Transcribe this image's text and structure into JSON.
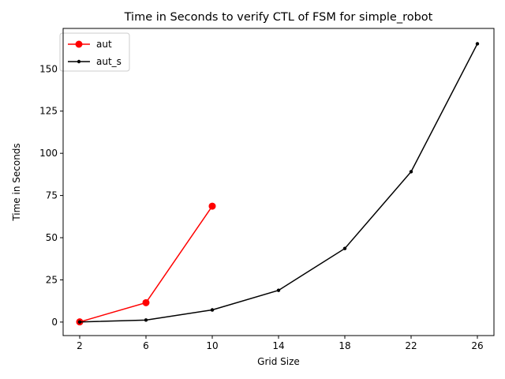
{
  "chart_data": {
    "type": "line",
    "title": "Time in Seconds to verify CTL of FSM for simple_robot",
    "xlabel": "Grid Size",
    "ylabel": "Time in Seconds",
    "xlim": [
      1,
      27
    ],
    "ylim": [
      -8,
      174
    ],
    "xticks": [
      2,
      6,
      10,
      14,
      18,
      22,
      26
    ],
    "yticks": [
      0,
      25,
      50,
      75,
      100,
      125,
      150
    ],
    "grid": false,
    "legend_position": "top-left",
    "series": [
      {
        "name": "aut",
        "color": "#ff0000",
        "marker": "large-circle",
        "x": [
          2,
          6,
          10
        ],
        "y": [
          0.1,
          11.5,
          68.7
        ]
      },
      {
        "name": "aut_s",
        "color": "#000000",
        "marker": "small-dot",
        "x": [
          2,
          6,
          10,
          14,
          18,
          22,
          26
        ],
        "y": [
          0.05,
          1.2,
          7.2,
          18.8,
          43.6,
          89.1,
          164.9
        ]
      }
    ]
  }
}
